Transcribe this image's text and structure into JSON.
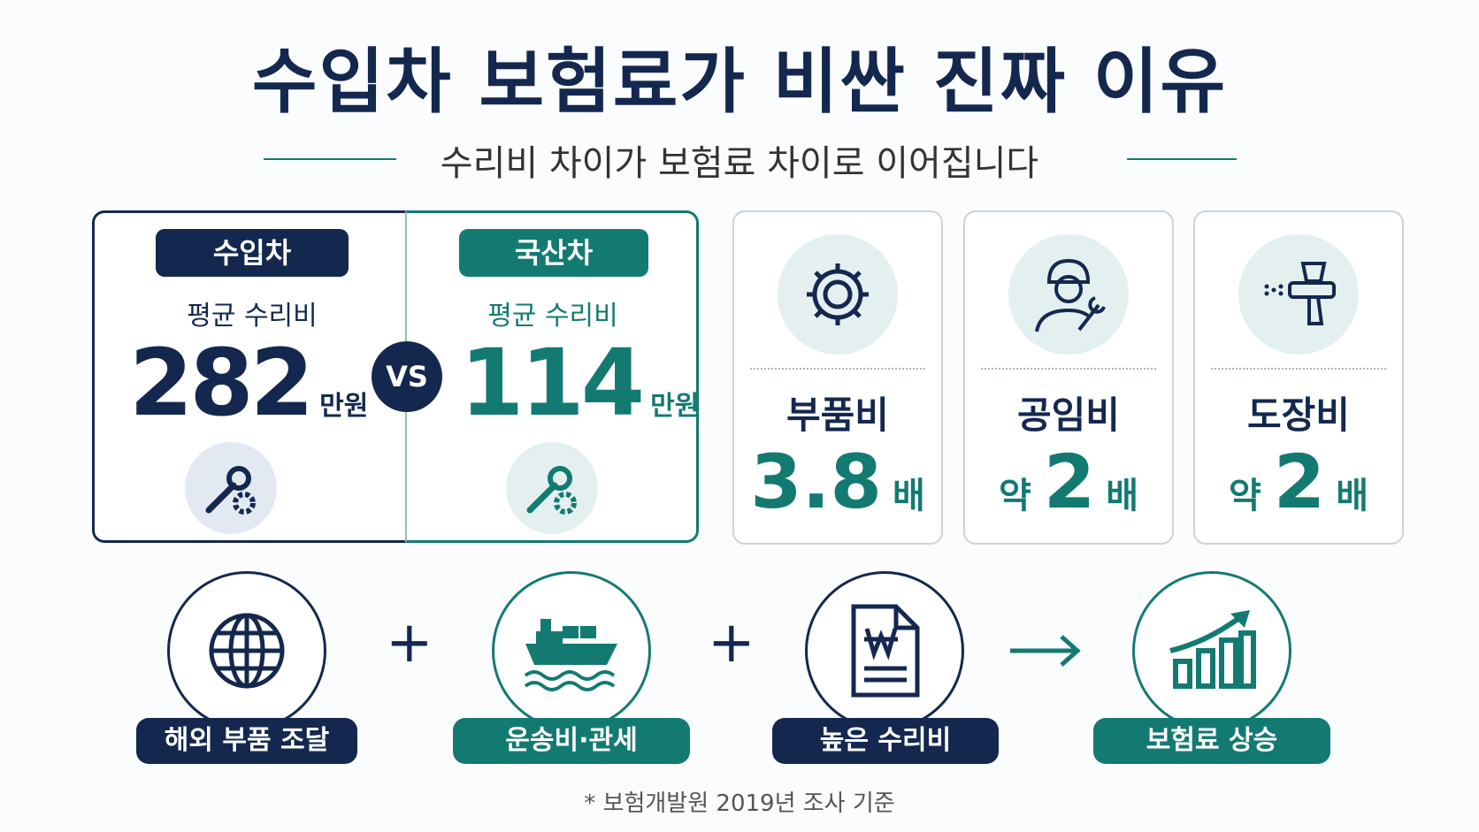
{
  "header": {
    "title": "수입차 보험료가 비싼 진짜 이유",
    "subtitle": "수리비 차이가 보험료 차이로 이어집니다"
  },
  "comparison": {
    "imported": {
      "badge": "수입차",
      "label": "평균 수리비",
      "value": "282",
      "unit": "만원"
    },
    "vs": "VS",
    "domestic": {
      "badge": "국산차",
      "label": "평균 수리비",
      "value": "114",
      "unit": "만원"
    }
  },
  "factors": [
    {
      "name": "부품비",
      "value": "3.8",
      "unit": "배"
    },
    {
      "name": "공임비",
      "prefix": "약",
      "value": "2",
      "unit": "배"
    },
    {
      "name": "도장비",
      "prefix": "약",
      "value": "2",
      "unit": "배"
    }
  ],
  "flow": [
    {
      "label": "해외 부품 조달"
    },
    {
      "label": "운송비·관세"
    },
    {
      "label": "높은 수리비"
    },
    {
      "label": "보험료 상승"
    }
  ],
  "footnote": "* 보험개발원 2019년 조사 기준"
}
